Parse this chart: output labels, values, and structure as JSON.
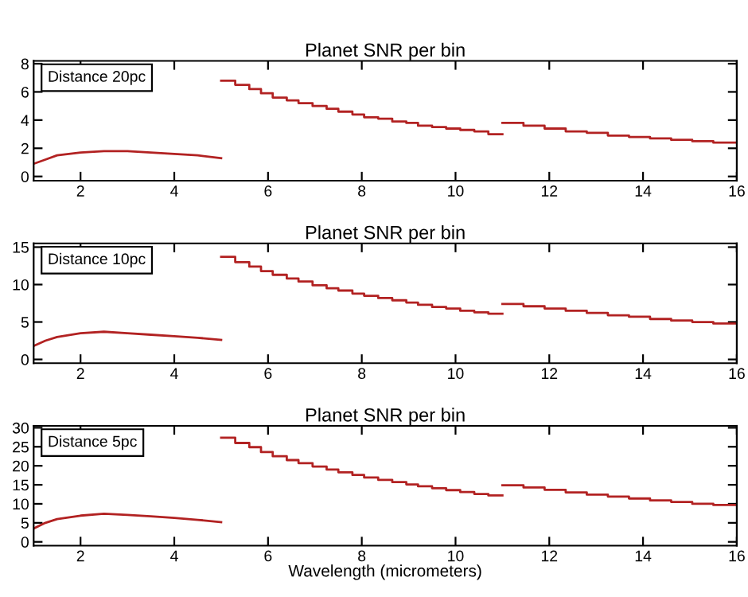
{
  "chart_data": [
    {
      "type": "step",
      "title": "Planet SNR per bin",
      "annotations": [
        "Distance 20pc"
      ],
      "xlim": [
        1,
        16
      ],
      "xticks": [
        2,
        4,
        6,
        8,
        10,
        12,
        14,
        16
      ],
      "ylim": [
        -0.3,
        8.2
      ],
      "yticks": [
        0,
        2,
        4,
        6,
        8
      ],
      "grid": false,
      "series": [
        {
          "type": "line",
          "color": "#b22222",
          "x": [
            1,
            1.25,
            1.5,
            2,
            2.5,
            3,
            3.5,
            4,
            4.5,
            5
          ],
          "values": [
            0.9,
            1.2,
            1.5,
            1.7,
            1.8,
            1.8,
            1.7,
            1.6,
            1.5,
            1.3
          ]
        },
        {
          "color": "#b22222",
          "x": [
            5.0,
            5.3,
            5.6,
            5.85,
            6.1,
            6.4,
            6.65,
            6.95,
            7.25,
            7.5,
            7.8,
            8.05,
            8.35,
            8.65,
            8.95,
            9.2,
            9.5,
            9.8,
            10.1,
            10.4,
            10.7,
            11
          ],
          "values": [
            6.8,
            6.5,
            6.2,
            5.9,
            5.6,
            5.4,
            5.2,
            5.0,
            4.8,
            4.6,
            4.4,
            4.2,
            4.1,
            3.9,
            3.8,
            3.6,
            3.5,
            3.4,
            3.3,
            3.2,
            3.0,
            3.0
          ]
        },
        {
          "color": "#b22222",
          "x": [
            11,
            11.45,
            11.9,
            12.35,
            12.8,
            13.25,
            13.7,
            14.15,
            14.6,
            15.05,
            15.5,
            16
          ],
          "values": [
            3.8,
            3.6,
            3.4,
            3.2,
            3.1,
            2.9,
            2.8,
            2.7,
            2.6,
            2.5,
            2.4,
            2.4
          ]
        }
      ]
    },
    {
      "type": "step",
      "title": "Planet SNR per bin",
      "annotations": [
        "Distance 10pc"
      ],
      "xlim": [
        1,
        16
      ],
      "xticks": [
        2,
        4,
        6,
        8,
        10,
        12,
        14,
        16
      ],
      "ylim": [
        -0.5,
        15.5
      ],
      "yticks": [
        0,
        5,
        10,
        15
      ],
      "grid": false,
      "series": [
        {
          "type": "line",
          "color": "#b22222",
          "x": [
            1,
            1.25,
            1.5,
            2,
            2.5,
            3,
            3.5,
            4,
            4.5,
            5
          ],
          "values": [
            1.8,
            2.5,
            3.0,
            3.5,
            3.7,
            3.5,
            3.3,
            3.1,
            2.9,
            2.6
          ]
        },
        {
          "color": "#b22222",
          "x": [
            5.0,
            5.3,
            5.6,
            5.85,
            6.1,
            6.4,
            6.65,
            6.95,
            7.25,
            7.5,
            7.8,
            8.05,
            8.35,
            8.65,
            8.95,
            9.2,
            9.5,
            9.8,
            10.1,
            10.4,
            10.7,
            11
          ],
          "values": [
            13.7,
            13.0,
            12.4,
            11.8,
            11.3,
            10.8,
            10.4,
            9.9,
            9.5,
            9.2,
            8.8,
            8.5,
            8.2,
            7.9,
            7.6,
            7.3,
            7.0,
            6.8,
            6.5,
            6.3,
            6.1,
            6.1
          ]
        },
        {
          "color": "#b22222",
          "x": [
            11,
            11.45,
            11.9,
            12.35,
            12.8,
            13.25,
            13.7,
            14.15,
            14.6,
            15.05,
            15.5,
            16
          ],
          "values": [
            7.4,
            7.1,
            6.8,
            6.5,
            6.2,
            5.9,
            5.7,
            5.4,
            5.2,
            5.0,
            4.8,
            4.8
          ]
        }
      ]
    },
    {
      "type": "step",
      "title": "Planet SNR per bin",
      "xlabel": "Wavelength (micrometers)",
      "annotations": [
        "Distance 5pc"
      ],
      "xlim": [
        1,
        16
      ],
      "xticks": [
        2,
        4,
        6,
        8,
        10,
        12,
        14,
        16
      ],
      "ylim": [
        -1,
        30.5
      ],
      "yticks": [
        0,
        5,
        10,
        15,
        20,
        25,
        30
      ],
      "grid": false,
      "series": [
        {
          "type": "line",
          "color": "#b22222",
          "x": [
            1,
            1.25,
            1.5,
            2,
            2.5,
            3,
            3.5,
            4,
            4.5,
            5
          ],
          "values": [
            3.5,
            5,
            6,
            6.9,
            7.4,
            7.1,
            6.7,
            6.3,
            5.8,
            5.2
          ]
        },
        {
          "color": "#b22222",
          "x": [
            5.0,
            5.3,
            5.6,
            5.85,
            6.1,
            6.4,
            6.65,
            6.95,
            7.25,
            7.5,
            7.8,
            8.05,
            8.35,
            8.65,
            8.95,
            9.2,
            9.5,
            9.8,
            10.1,
            10.4,
            10.7,
            11
          ],
          "values": [
            27.4,
            26.0,
            24.9,
            23.6,
            22.5,
            21.5,
            20.7,
            19.8,
            19.0,
            18.3,
            17.6,
            16.9,
            16.3,
            15.7,
            15.1,
            14.6,
            14.1,
            13.6,
            13.1,
            12.6,
            12.2,
            12.2
          ]
        },
        {
          "color": "#b22222",
          "x": [
            11,
            11.45,
            11.9,
            12.35,
            12.8,
            13.25,
            13.7,
            14.15,
            14.6,
            15.05,
            15.5,
            16
          ],
          "values": [
            14.9,
            14.3,
            13.7,
            13.0,
            12.4,
            11.9,
            11.4,
            10.9,
            10.5,
            10.0,
            9.7,
            9.7
          ]
        }
      ]
    }
  ]
}
